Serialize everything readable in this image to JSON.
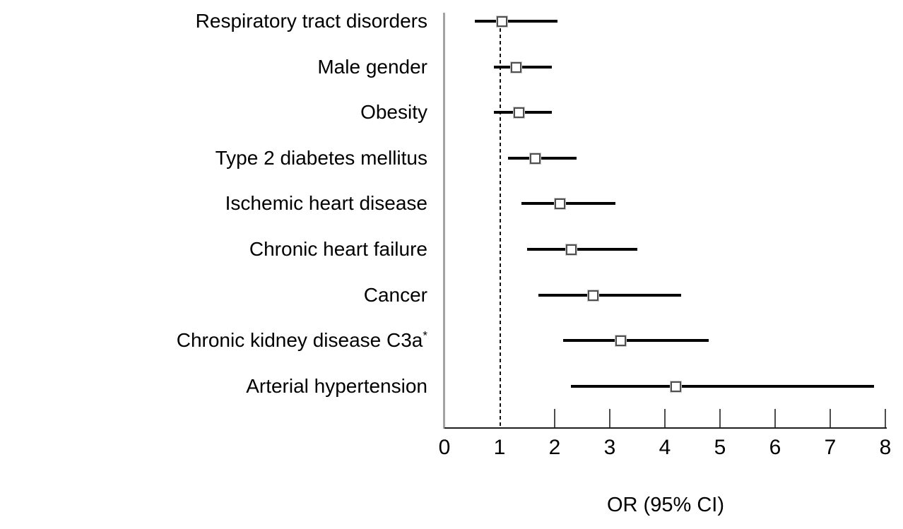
{
  "figure": {
    "background": "#ffffff"
  },
  "chart_data": {
    "type": "scatter",
    "subtype": "forest-plot",
    "title": "",
    "xlabel": "OR (95% CI)",
    "ylabel": "",
    "xlim": [
      0,
      8
    ],
    "x_ticks": [
      0,
      1,
      2,
      3,
      4,
      5,
      6,
      7,
      8
    ],
    "reference_line_x": 1,
    "grid": false,
    "legend": "none",
    "rows": [
      {
        "label": "Respiratory tract disorders",
        "or": 1.05,
        "ci_low": 0.55,
        "ci_high": 2.05
      },
      {
        "label": "Male gender",
        "or": 1.3,
        "ci_low": 0.9,
        "ci_high": 1.95
      },
      {
        "label": "Obesity",
        "or": 1.35,
        "ci_low": 0.9,
        "ci_high": 1.95
      },
      {
        "label": "Type 2 diabetes mellitus",
        "or": 1.65,
        "ci_low": 1.15,
        "ci_high": 2.4
      },
      {
        "label": "Ischemic heart disease",
        "or": 2.1,
        "ci_low": 1.4,
        "ci_high": 3.1
      },
      {
        "label": "Chronic heart failure",
        "or": 2.3,
        "ci_low": 1.5,
        "ci_high": 3.5
      },
      {
        "label": "Cancer",
        "or": 2.7,
        "ci_low": 1.7,
        "ci_high": 4.3
      },
      {
        "label": "Chronic kidney disease C3a",
        "sup": "*",
        "or": 3.2,
        "ci_low": 2.15,
        "ci_high": 4.8
      },
      {
        "label": "Arterial hypertension",
        "or": 4.2,
        "ci_low": 2.3,
        "ci_high": 7.8
      }
    ],
    "colors": {
      "ci_line": "#000000",
      "marker_fill": "#ffffff",
      "marker_border": "#4f4f4f",
      "axis_line": "#1f1f1f",
      "baseline": "#a3a3a3",
      "reference_line": "#111111",
      "text": "#000000"
    }
  }
}
